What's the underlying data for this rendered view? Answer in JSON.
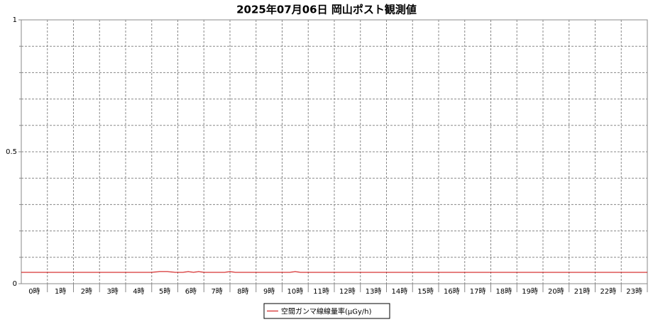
{
  "chart_data": {
    "type": "line",
    "title": "2025年07月06日 岡山ポスト観測値",
    "categories": [
      "0時",
      "1時",
      "2時",
      "3時",
      "4時",
      "5時",
      "6時",
      "7時",
      "8時",
      "9時",
      "10時",
      "11時",
      "12時",
      "13時",
      "14時",
      "15時",
      "16時",
      "17時",
      "18時",
      "19時",
      "20時",
      "21時",
      "22時",
      "23時"
    ],
    "xlim": [
      0,
      24
    ],
    "ylim": [
      0,
      1
    ],
    "yticks": [
      0,
      0.5,
      1
    ],
    "yminor_ticks": [
      0.1,
      0.2,
      0.3,
      0.4,
      0.6,
      0.7,
      0.8,
      0.9
    ],
    "grid": true,
    "legend": "bottom",
    "series": [
      {
        "name": "空間ガンマ線線量率(μGy/h)",
        "color": "#cc0000",
        "x": [
          0,
          1,
          2,
          3,
          4,
          5,
          5.3,
          5.6,
          5.9,
          6.2,
          6.4,
          6.6,
          6.8,
          7,
          7.5,
          7.8,
          8,
          8.2,
          9,
          10,
          10.3,
          10.5,
          10.7,
          11,
          12,
          13,
          14,
          15,
          16,
          17,
          18,
          19,
          20,
          21,
          22,
          23,
          24
        ],
        "values": [
          0.043,
          0.043,
          0.043,
          0.043,
          0.043,
          0.043,
          0.046,
          0.046,
          0.043,
          0.043,
          0.046,
          0.043,
          0.046,
          0.043,
          0.043,
          0.043,
          0.046,
          0.043,
          0.043,
          0.043,
          0.043,
          0.046,
          0.043,
          0.043,
          0.043,
          0.043,
          0.043,
          0.043,
          0.043,
          0.043,
          0.043,
          0.043,
          0.043,
          0.043,
          0.043,
          0.043,
          0.043
        ]
      }
    ]
  }
}
